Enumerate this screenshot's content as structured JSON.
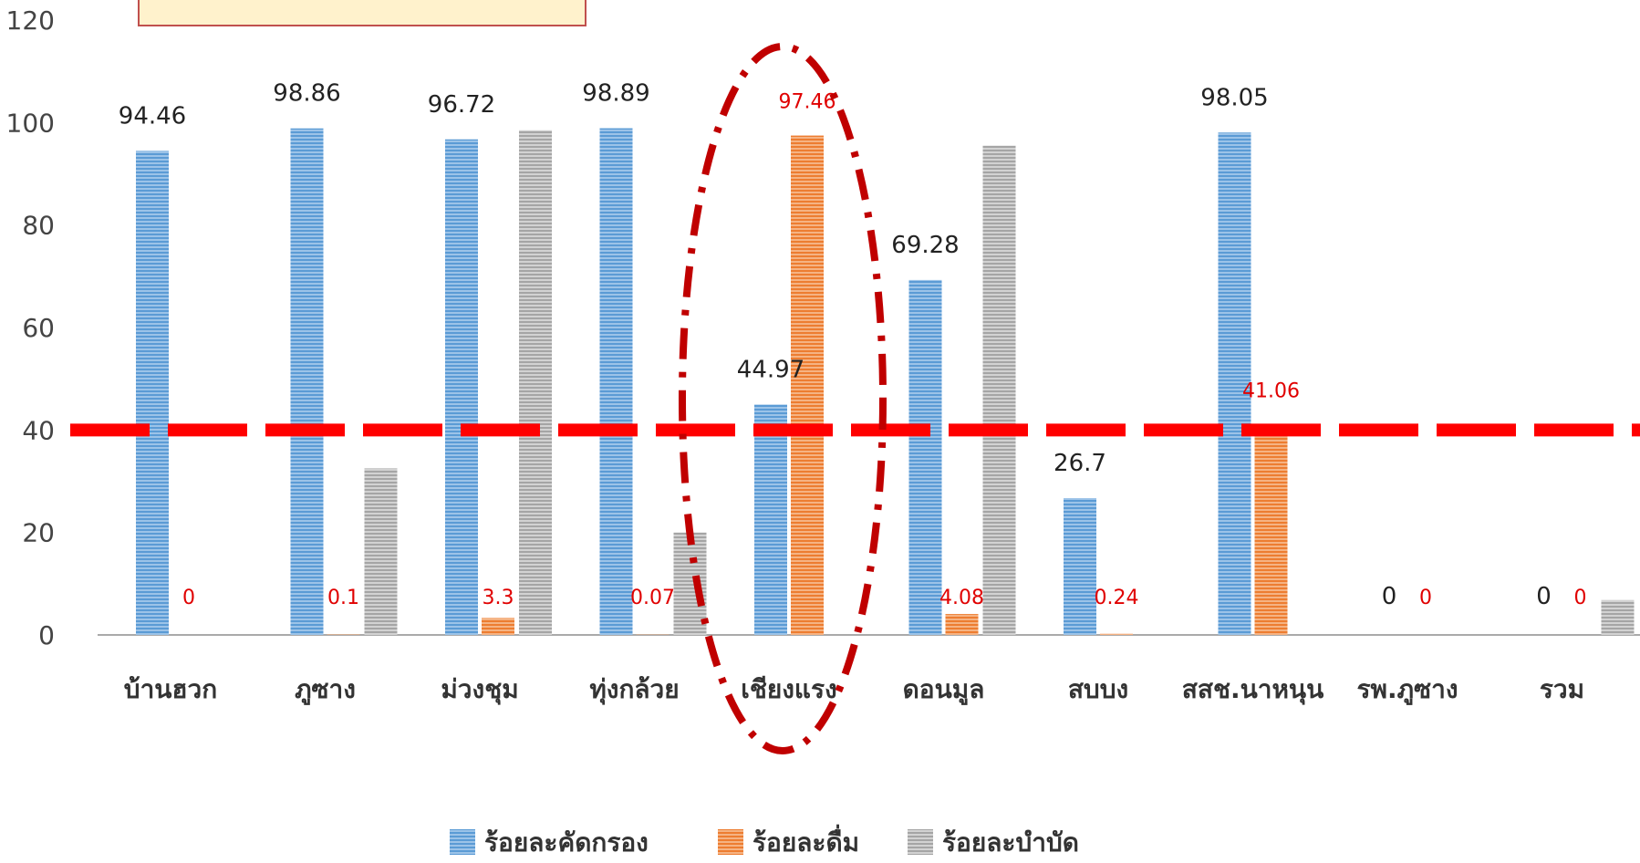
{
  "chart_data": {
    "type": "bar",
    "categories": [
      "บ้านฮวก",
      "ภูซาง",
      "ม่วงชุม",
      "ทุ่งกล้วย",
      "เชียงแรง",
      "ดอนมูล",
      "สบบง",
      "สสช.นาหนุน",
      "รพ.ภูซาง",
      "รวม"
    ],
    "series": [
      {
        "name": "ร้อยละคัดกรอง",
        "color": "#5b9bd5",
        "values": [
          94.46,
          98.86,
          96.72,
          98.89,
          44.97,
          69.28,
          26.7,
          98.05,
          0,
          0
        ],
        "labels": [
          "94.46",
          "98.86",
          "96.72",
          "98.89",
          "44.97",
          "69.28",
          "26.7",
          "98.05",
          "0",
          "0"
        ]
      },
      {
        "name": "ร้อยละดื่ม",
        "color": "#ed7d31",
        "values": [
          0,
          0.1,
          3.3,
          0.07,
          97.46,
          4.08,
          0.24,
          41.06,
          0,
          0
        ],
        "labels": [
          "0",
          "0.1",
          "3.3",
          "0.07",
          "97.46",
          "4.08",
          "0.24",
          "41.06",
          "0",
          "0"
        ]
      },
      {
        "name": "ร้อยละบำบัด",
        "color": "#a5a5a5",
        "values": [
          0,
          32.5,
          98.5,
          20,
          0,
          95.5,
          0,
          0,
          0,
          6.8
        ]
      }
    ],
    "yticks": [
      "0",
      "20",
      "40",
      "60",
      "80",
      "100",
      "120"
    ],
    "ylim": [
      0,
      120
    ],
    "target_line": 40,
    "grid": false,
    "legend_position": "bottom",
    "highlight_category": "เชียงแรง"
  }
}
